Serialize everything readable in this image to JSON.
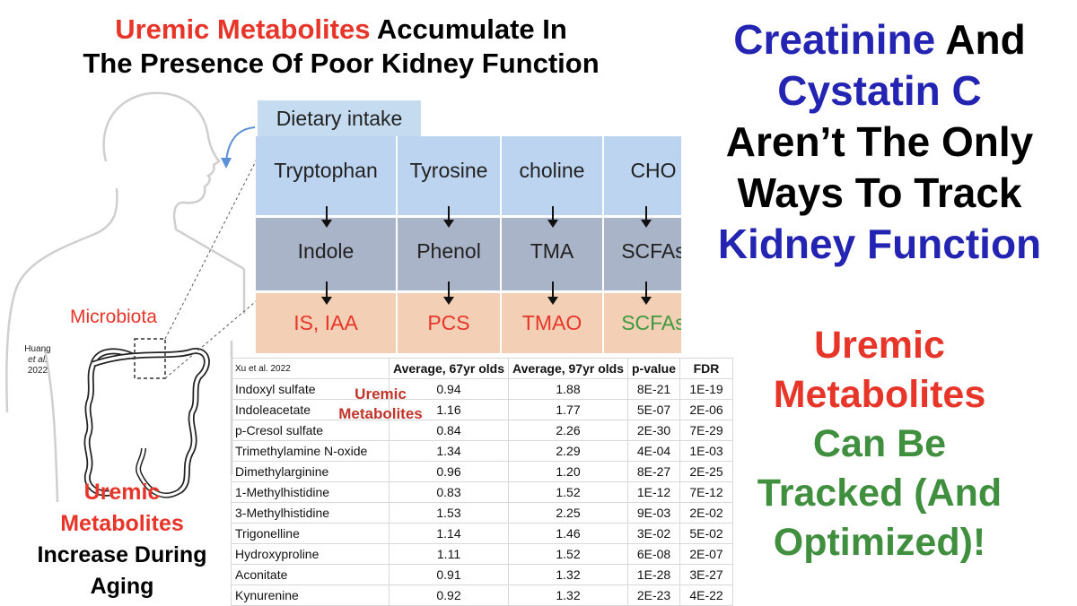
{
  "headline": {
    "line1_red": "Uremic Metabolites",
    "line1_rest": " Accumulate In",
    "line2": "The Presence Of Poor Kidney Function"
  },
  "right_top": {
    "w1": "Creatinine",
    "w2": " And",
    "w3": "Cystatin C",
    "w4": "Aren’t The Only",
    "w5": "Ways To Track",
    "w6": "Kidney Function"
  },
  "right_bottom": {
    "w1": "Uremic",
    "w2": "Metabolites",
    "w3": "Can Be",
    "w4": "Tracked (And",
    "w5": "Optimized)!"
  },
  "pathway": {
    "dietary_intake": "Dietary intake",
    "columns": [
      {
        "precursor": "Tryptophan",
        "intermediate": "Indole",
        "product": "IS, IAA",
        "product_color": "#e8352a"
      },
      {
        "precursor": "Tyrosine",
        "intermediate": "Phenol",
        "product": "PCS",
        "product_color": "#e8352a"
      },
      {
        "precursor": "choline",
        "intermediate": "TMA",
        "product": "TMAO",
        "product_color": "#e8352a"
      },
      {
        "precursor": "CHO",
        "intermediate": "SCFAs",
        "product": "SCFAs",
        "product_color": "#3f9a3f"
      }
    ]
  },
  "labels": {
    "microbiota": "Microbiota",
    "citation_line1": "Huang",
    "citation_line2": "et al.",
    "citation_line3": "2022"
  },
  "bottom_left": {
    "w1": "Uremic",
    "w2": "Metabolites",
    "w3": "Increase During",
    "w4": "Aging"
  },
  "table": {
    "overlay_label_line1": "Uremic",
    "overlay_label_line2": "Metabolites",
    "headers": [
      "Xu et al. 2022",
      "Average, 67yr olds",
      "Average, 97yr olds",
      "p-value",
      "FDR"
    ],
    "rows": [
      [
        "Indoxyl sulfate",
        "0.94",
        "1.88",
        "8E-21",
        "1E-19"
      ],
      [
        "Indoleacetate",
        "1.16",
        "1.77",
        "5E-07",
        "2E-06"
      ],
      [
        "p-Cresol sulfate",
        "0.84",
        "2.26",
        "2E-30",
        "7E-29"
      ],
      [
        "Trimethylamine N-oxide",
        "1.34",
        "2.29",
        "4E-04",
        "1E-03"
      ],
      [
        "Dimethylarginine",
        "0.96",
        "1.20",
        "8E-27",
        "2E-25"
      ],
      [
        "1-Methylhistidine",
        "0.83",
        "1.52",
        "1E-12",
        "7E-12"
      ],
      [
        "3-Methylhistidine",
        "1.53",
        "2.25",
        "9E-03",
        "2E-02"
      ],
      [
        "Trigonelline",
        "1.14",
        "1.46",
        "3E-02",
        "5E-02"
      ],
      [
        "Hydroxyproline",
        "1.11",
        "1.52",
        "6E-08",
        "2E-07"
      ],
      [
        "Aconitate",
        "0.91",
        "1.32",
        "1E-28",
        "3E-27"
      ],
      [
        "Kynurenine",
        "0.92",
        "1.32",
        "2E-23",
        "4E-22"
      ]
    ]
  }
}
